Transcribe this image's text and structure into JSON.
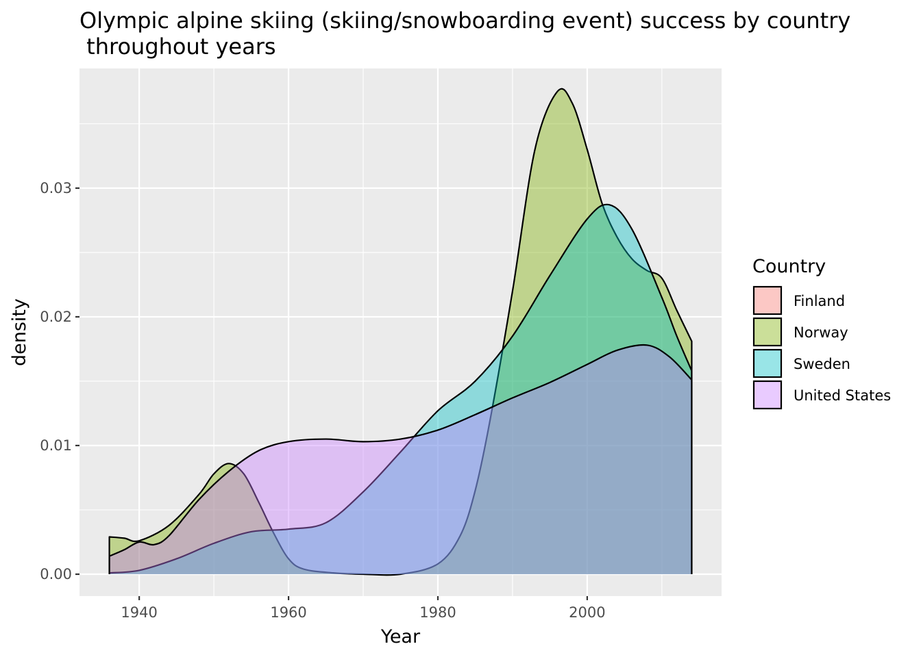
{
  "chart_data": {
    "type": "area",
    "title_lines": [
      "Olympic alpine skiing (skiing/snowboarding event) success by country",
      " throughout years"
    ],
    "xlabel": "Year",
    "ylabel": "density",
    "xlim": [
      1932,
      2018
    ],
    "ylim": [
      -0.0017,
      0.0393
    ],
    "x_ticks": [
      1940,
      1960,
      1980,
      2000
    ],
    "y_ticks": [
      0.0,
      0.01,
      0.02,
      0.03
    ],
    "y_tick_labels": [
      "0.00",
      "0.01",
      "0.02",
      "0.03"
    ],
    "grid": true,
    "legend": {
      "title": "Country",
      "position": "right"
    },
    "series": [
      {
        "name": "Finland",
        "fill": "#F8766D",
        "points": []
      },
      {
        "name": "Norway",
        "fill": "#7CAE00",
        "points": [
          [
            1936,
            0.0029
          ],
          [
            1938,
            0.0028
          ],
          [
            1940,
            0.0026
          ],
          [
            1944,
            0.0038
          ],
          [
            1948,
            0.0062
          ],
          [
            1950,
            0.0078
          ],
          [
            1952,
            0.0086
          ],
          [
            1954,
            0.0078
          ],
          [
            1956,
            0.0056
          ],
          [
            1958,
            0.0032
          ],
          [
            1960,
            0.0012
          ],
          [
            1962,
            0.0004
          ],
          [
            1966,
            0.0001
          ],
          [
            1970,
            0.0
          ],
          [
            1975,
            0.0
          ],
          [
            1980,
            0.0008
          ],
          [
            1983,
            0.003
          ],
          [
            1985,
            0.0065
          ],
          [
            1987,
            0.012
          ],
          [
            1990,
            0.022
          ],
          [
            1993,
            0.033
          ],
          [
            1996,
            0.0375
          ],
          [
            1998,
            0.0366
          ],
          [
            2000,
            0.033
          ],
          [
            2002,
            0.0288
          ],
          [
            2004,
            0.0262
          ],
          [
            2006,
            0.0245
          ],
          [
            2008,
            0.0236
          ],
          [
            2010,
            0.023
          ],
          [
            2012,
            0.0205
          ],
          [
            2014,
            0.0181
          ]
        ]
      },
      {
        "name": "Sweden",
        "fill": "#00BFC4",
        "points": [
          [
            1936,
            0.0001
          ],
          [
            1940,
            0.0003
          ],
          [
            1945,
            0.0012
          ],
          [
            1950,
            0.0024
          ],
          [
            1955,
            0.0033
          ],
          [
            1960,
            0.0035
          ],
          [
            1965,
            0.004
          ],
          [
            1970,
            0.0064
          ],
          [
            1975,
            0.0095
          ],
          [
            1980,
            0.0127
          ],
          [
            1985,
            0.015
          ],
          [
            1990,
            0.0185
          ],
          [
            1995,
            0.0232
          ],
          [
            2000,
            0.0276
          ],
          [
            2003,
            0.0287
          ],
          [
            2006,
            0.0268
          ],
          [
            2010,
            0.0215
          ],
          [
            2012,
            0.0185
          ],
          [
            2014,
            0.0158
          ]
        ]
      },
      {
        "name": "United States",
        "fill": "#C77CFF",
        "points": [
          [
            1936,
            0.0014
          ],
          [
            1938,
            0.0019
          ],
          [
            1940,
            0.0025
          ],
          [
            1942,
            0.0023
          ],
          [
            1944,
            0.003
          ],
          [
            1948,
            0.0058
          ],
          [
            1952,
            0.008
          ],
          [
            1956,
            0.0096
          ],
          [
            1960,
            0.0103
          ],
          [
            1965,
            0.0105
          ],
          [
            1970,
            0.0103
          ],
          [
            1975,
            0.0105
          ],
          [
            1980,
            0.0112
          ],
          [
            1985,
            0.0124
          ],
          [
            1990,
            0.0137
          ],
          [
            1995,
            0.0149
          ],
          [
            2000,
            0.0163
          ],
          [
            2004,
            0.0174
          ],
          [
            2008,
            0.0178
          ],
          [
            2011,
            0.0169
          ],
          [
            2014,
            0.0151
          ]
        ]
      }
    ]
  }
}
